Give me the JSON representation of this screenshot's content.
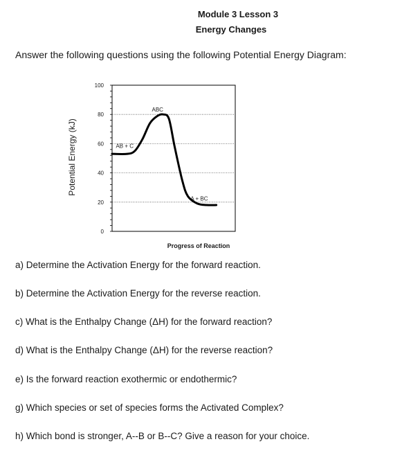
{
  "header": {
    "title": "Module 3 Lesson 3",
    "subtitle": "Energy Changes"
  },
  "instructions": "Answer the following questions using the following Potential Energy Diagram:",
  "chart_data": {
    "type": "line",
    "title": "",
    "xlabel": "Progress of Reaction",
    "ylabel": "Potential Energy (kJ)",
    "ylim": [
      0,
      100
    ],
    "yticks": [
      "0",
      "20",
      "40",
      "60",
      "80",
      "100"
    ],
    "grid": true,
    "series": [
      {
        "x": [
          0,
          0.8,
          1.2,
          1.6,
          2.0,
          2.4,
          2.7,
          3.0,
          3.3,
          3.7,
          4.0,
          4.5,
          5.0,
          5.5
        ],
        "y": [
          53,
          53,
          55,
          63,
          74,
          79,
          80,
          77,
          58,
          35,
          24,
          19,
          18,
          18
        ]
      }
    ],
    "annotations": [
      {
        "text": "AB + C",
        "x": 0.2,
        "y": 57
      },
      {
        "text": "ABC",
        "x": 2.4,
        "y": 82
      },
      {
        "text": "A + BC",
        "x": 4.6,
        "y": 21
      }
    ]
  },
  "questions": [
    "a) Determine the Activation Energy for the forward reaction.",
    "b) Determine the Activation Energy for the reverse reaction.",
    "c) What is the Enthalpy Change (ΔH) for the forward reaction?",
    "d) What is the Enthalpy Change (ΔH) for the reverse reaction?",
    "e) Is the forward reaction exothermic or endothermic?",
    "g) Which species or set of species forms the Activated Complex?",
    "h) Which bond is stronger, A--B or B--C? Give a reason for your choice."
  ]
}
